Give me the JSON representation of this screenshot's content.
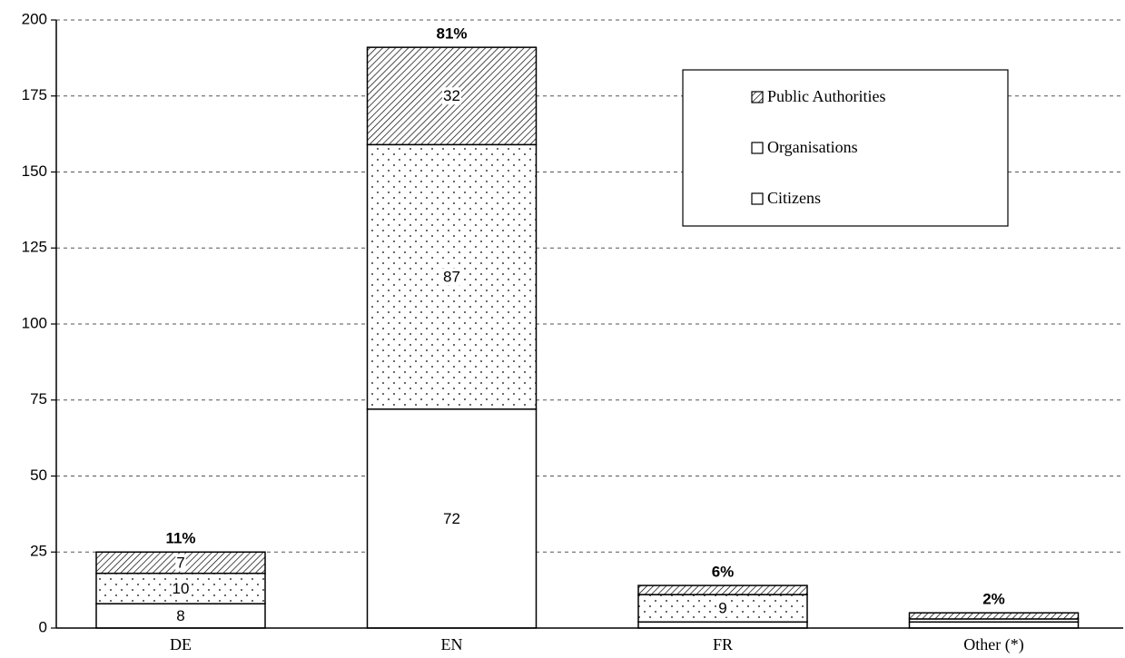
{
  "chart_data": {
    "type": "stacked_bar",
    "categories": [
      "DE",
      "EN",
      "FR",
      "Other (*)"
    ],
    "series": [
      {
        "name": "Citizens",
        "color": "#ffffff",
        "pattern": "none",
        "values": [
          8,
          72,
          2,
          2
        ]
      },
      {
        "name": "Organisations",
        "color": "#ffffff",
        "pattern": "dots",
        "values": [
          10,
          87,
          9,
          1
        ]
      },
      {
        "name": "Public Authorities",
        "color": "#ffffff",
        "pattern": "hatch",
        "values": [
          7,
          32,
          3,
          2
        ]
      }
    ],
    "share_labels": [
      "11%",
      "81%",
      "6%",
      "2%"
    ],
    "ylim": [
      0,
      200
    ],
    "yticks": [
      0,
      25,
      50,
      75,
      100,
      125,
      150,
      175,
      200
    ],
    "grid": true,
    "legend": "upper right"
  }
}
